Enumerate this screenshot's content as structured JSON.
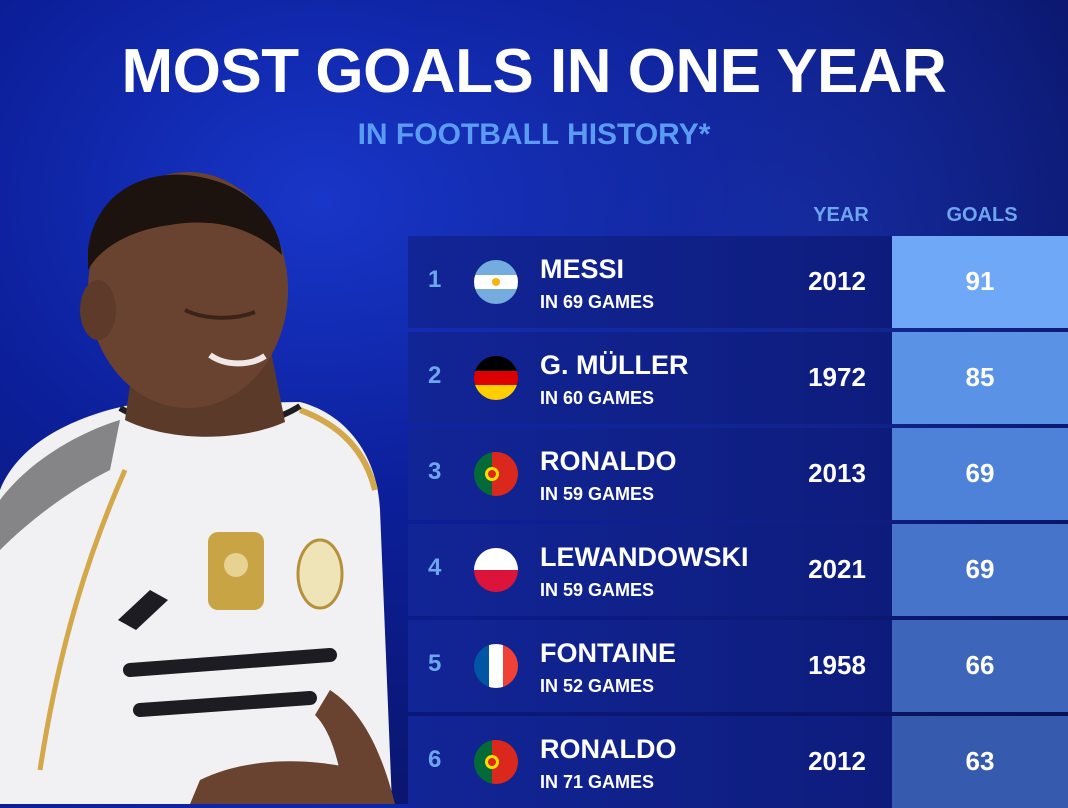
{
  "header": {
    "title": "MOST GOALS IN ONE YEAR",
    "subtitle": "IN FOOTBALL HISTORY*"
  },
  "columns": {
    "year": "YEAR",
    "goals": "GOALS"
  },
  "colors": {
    "rank_text": "#6ea6ee",
    "goals_fill": [
      "#6ea8f6",
      "#5a92e6",
      "#4e82d8",
      "#4574ca",
      "#3d66bb",
      "#355aae"
    ]
  },
  "rows": [
    {
      "rank": "1",
      "flag": "argentina-flag-icon",
      "name": "MESSI",
      "games": "IN 69 GAMES",
      "year": "2012",
      "goals": "91"
    },
    {
      "rank": "2",
      "flag": "germany-flag-icon",
      "name": "G. MÜLLER",
      "games": "IN 60 GAMES",
      "year": "1972",
      "goals": "85"
    },
    {
      "rank": "3",
      "flag": "portugal-flag-icon",
      "name": "RONALDO",
      "games": "IN 59 GAMES",
      "year": "2013",
      "goals": "69"
    },
    {
      "rank": "4",
      "flag": "poland-flag-icon",
      "name": "LEWANDOWSKI",
      "games": "IN 59 GAMES",
      "year": "2021",
      "goals": "69"
    },
    {
      "rank": "5",
      "flag": "france-flag-icon",
      "name": "FONTAINE",
      "games": "IN 52 GAMES",
      "year": "1958",
      "goals": "66"
    },
    {
      "rank": "6",
      "flag": "portugal-flag-icon",
      "name": "RONALDO",
      "games": "IN 71 GAMES",
      "year": "2012",
      "goals": "63"
    }
  ]
}
